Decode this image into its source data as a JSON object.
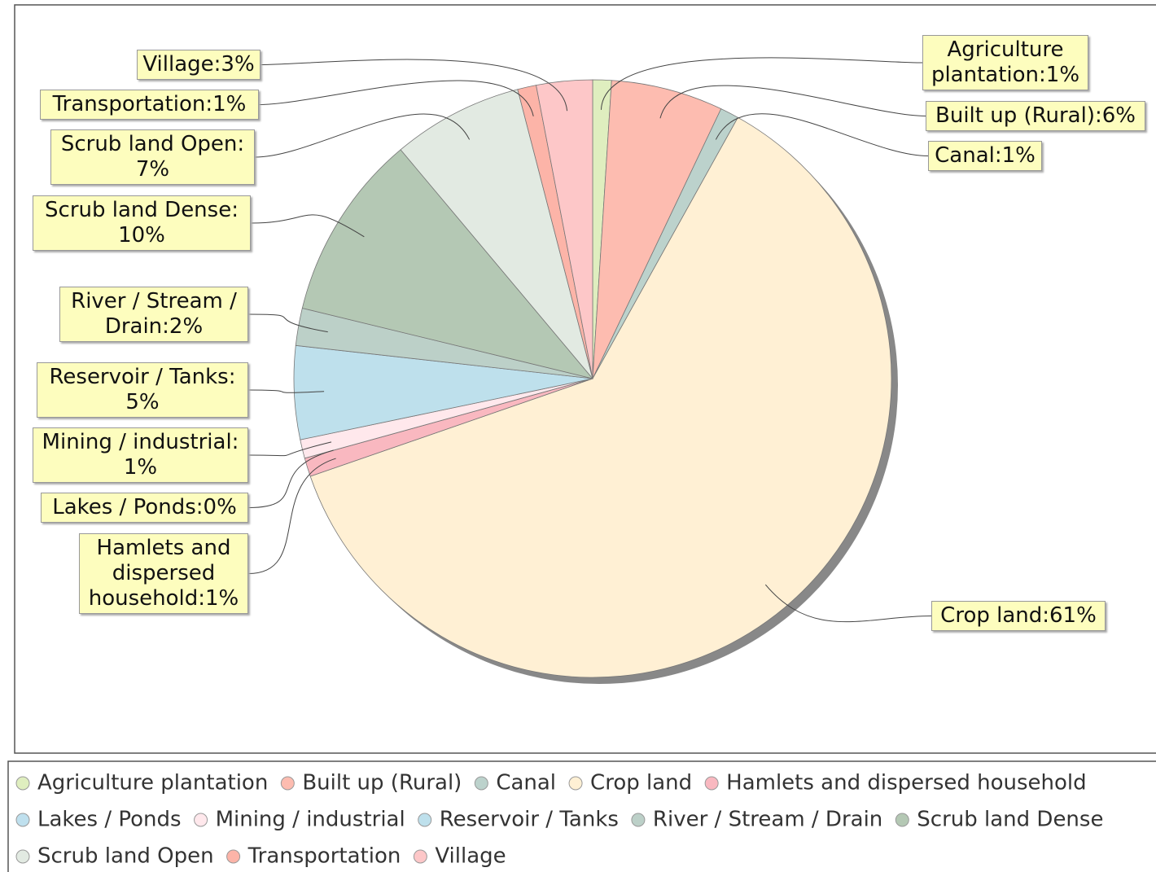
{
  "chart_data": {
    "type": "pie",
    "categories": [
      "Agriculture plantation",
      "Built up (Rural)",
      "Canal",
      "Crop land",
      "Hamlets and dispersed household",
      "Lakes / Ponds",
      "Mining / industrial",
      "Reservoir / Tanks",
      "River / Stream / Drain",
      "Scrub land Dense",
      "Scrub land Open",
      "Transportation",
      "Village"
    ],
    "values": [
      1,
      6,
      1,
      61,
      1,
      0,
      1,
      5,
      2,
      10,
      7,
      1,
      3
    ],
    "value_labels": [
      "Agriculture plantation:1%",
      "Built up (Rural):6%",
      "Canal:1%",
      "Crop land:61%",
      "Hamlets and dispersed household:1%",
      "Lakes / Ponds:0%",
      "Mining / industrial: 1%",
      "Reservoir / Tanks: 5%",
      "River / Stream / Drain:2%",
      "Scrub land Dense: 10%",
      "Scrub land Open: 7%",
      "Transportation:1%",
      "Village:3%"
    ],
    "colors": [
      "#dfeebf",
      "#fdbcb0",
      "#bcd2cc",
      "#fff0d4",
      "#f9b8c0",
      "#bfe0ee",
      "#ffe8ec",
      "#bee0ec",
      "#bcd0c8",
      "#b4c8b4",
      "#e2eae2",
      "#fcb4a8",
      "#fdc7c8"
    ],
    "legend": "bottom"
  }
}
